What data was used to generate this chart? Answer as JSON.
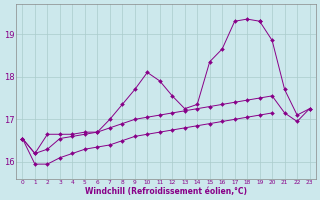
{
  "background_color": "#cce8ec",
  "grid_color": "#aacccc",
  "line_color": "#880088",
  "xlabel": "Windchill (Refroidissement éolien,°C)",
  "ylabel_ticks": [
    16,
    17,
    18,
    19
  ],
  "xlim": [
    -0.5,
    23.5
  ],
  "ylim": [
    15.6,
    19.7
  ],
  "x_ticks": [
    0,
    1,
    2,
    3,
    4,
    5,
    6,
    7,
    8,
    9,
    10,
    11,
    12,
    13,
    14,
    15,
    16,
    17,
    18,
    19,
    20,
    21,
    22,
    23
  ],
  "s1_x": [
    0,
    1,
    2,
    3,
    4,
    5,
    6,
    7,
    8,
    9,
    10,
    11,
    12,
    13,
    14,
    15,
    16,
    17,
    18,
    19
  ],
  "s1_y": [
    16.55,
    16.2,
    16.65,
    16.65,
    16.65,
    16.7,
    16.7,
    17.0,
    17.35,
    17.7,
    18.1,
    17.9,
    17.55,
    17.25,
    17.35,
    18.35,
    18.65,
    19.3,
    19.35,
    19.3
  ],
  "s2_x": [
    19,
    20,
    21,
    22,
    23
  ],
  "s2_y": [
    19.3,
    18.85,
    17.7,
    17.1,
    17.25
  ],
  "s3_x": [
    0,
    1,
    2,
    3,
    4,
    5,
    6,
    7,
    8,
    9,
    10,
    11,
    12,
    13,
    14,
    15,
    16,
    17,
    18,
    19,
    20,
    21,
    22,
    23
  ],
  "s3_y": [
    16.55,
    16.2,
    16.3,
    16.55,
    16.6,
    16.65,
    16.7,
    16.8,
    16.9,
    17.0,
    17.05,
    17.1,
    17.15,
    17.2,
    17.25,
    17.3,
    17.35,
    17.4,
    17.45,
    17.5,
    17.55,
    17.15,
    16.95,
    17.25
  ],
  "s4_x": [
    0,
    1,
    2,
    3,
    4,
    5,
    6,
    7,
    8,
    9,
    10,
    11,
    12,
    13,
    14,
    15,
    16,
    17,
    18,
    19,
    20
  ],
  "s4_y": [
    16.55,
    15.95,
    15.95,
    16.1,
    16.2,
    16.3,
    16.35,
    16.4,
    16.5,
    16.6,
    16.65,
    16.7,
    16.75,
    16.8,
    16.85,
    16.9,
    16.95,
    17.0,
    17.05,
    17.1,
    17.15
  ]
}
